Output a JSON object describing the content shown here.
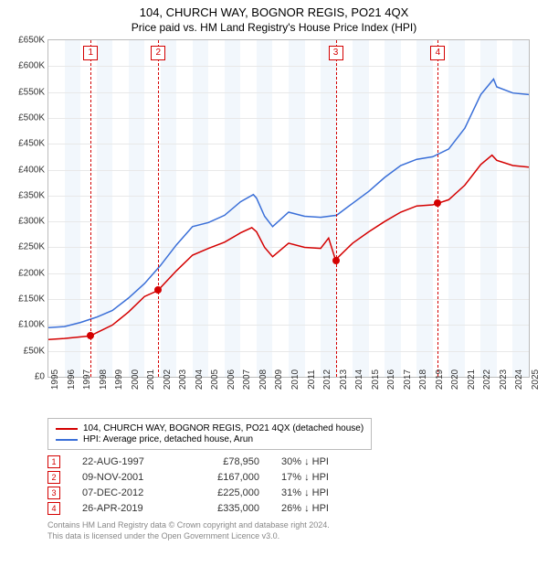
{
  "title_line1": "104, CHURCH WAY, BOGNOR REGIS, PO21 4QX",
  "title_line2": "Price paid vs. HM Land Registry's House Price Index (HPI)",
  "chart": {
    "type": "line",
    "background_color": "#ffffff",
    "band_color": "#f2f7fc",
    "grid_color": "#e8e8e8",
    "border_color": "#bbbbbb",
    "ylim": [
      0,
      650000
    ],
    "ytick_step": 50000,
    "yticks": [
      "£0",
      "£50K",
      "£100K",
      "£150K",
      "£200K",
      "£250K",
      "£300K",
      "£350K",
      "£400K",
      "£450K",
      "£500K",
      "£550K",
      "£600K",
      "£650K"
    ],
    "xlim": [
      1995,
      2025
    ],
    "xticks": [
      1995,
      1996,
      1997,
      1998,
      1999,
      2000,
      2001,
      2002,
      2003,
      2004,
      2005,
      2006,
      2007,
      2008,
      2009,
      2010,
      2011,
      2012,
      2013,
      2014,
      2015,
      2016,
      2017,
      2018,
      2019,
      2020,
      2021,
      2022,
      2023,
      2024,
      2025
    ],
    "label_fontsize": 10,
    "title_fontsize": 13,
    "line_width": 1.5,
    "series": {
      "property": {
        "label": "104, CHURCH WAY, BOGNOR REGIS, PO21 4QX (detached house)",
        "color": "#d40000",
        "points": [
          [
            1995.0,
            72000
          ],
          [
            1996.0,
            74000
          ],
          [
            1997.0,
            77000
          ],
          [
            1997.64,
            78950
          ],
          [
            1998.0,
            85000
          ],
          [
            1999.0,
            100000
          ],
          [
            2000.0,
            125000
          ],
          [
            2001.0,
            155000
          ],
          [
            2001.86,
            167000
          ],
          [
            2002.0,
            172000
          ],
          [
            2003.0,
            205000
          ],
          [
            2004.0,
            235000
          ],
          [
            2005.0,
            248000
          ],
          [
            2006.0,
            260000
          ],
          [
            2007.0,
            278000
          ],
          [
            2007.7,
            288000
          ],
          [
            2008.0,
            280000
          ],
          [
            2008.5,
            250000
          ],
          [
            2009.0,
            232000
          ],
          [
            2010.0,
            258000
          ],
          [
            2011.0,
            250000
          ],
          [
            2012.0,
            248000
          ],
          [
            2012.5,
            268000
          ],
          [
            2012.94,
            225000
          ],
          [
            2013.0,
            228000
          ],
          [
            2014.0,
            258000
          ],
          [
            2015.0,
            280000
          ],
          [
            2016.0,
            300000
          ],
          [
            2017.0,
            318000
          ],
          [
            2018.0,
            330000
          ],
          [
            2019.0,
            332000
          ],
          [
            2019.32,
            335000
          ],
          [
            2020.0,
            342000
          ],
          [
            2021.0,
            370000
          ],
          [
            2022.0,
            410000
          ],
          [
            2022.7,
            428000
          ],
          [
            2023.0,
            418000
          ],
          [
            2024.0,
            408000
          ],
          [
            2025.0,
            405000
          ]
        ]
      },
      "hpi": {
        "label": "HPI: Average price, detached house, Arun",
        "color": "#3a6fd8",
        "points": [
          [
            1995.0,
            95000
          ],
          [
            1996.0,
            97000
          ],
          [
            1997.0,
            105000
          ],
          [
            1998.0,
            115000
          ],
          [
            1999.0,
            128000
          ],
          [
            2000.0,
            152000
          ],
          [
            2001.0,
            180000
          ],
          [
            2002.0,
            215000
          ],
          [
            2003.0,
            255000
          ],
          [
            2004.0,
            290000
          ],
          [
            2005.0,
            298000
          ],
          [
            2006.0,
            312000
          ],
          [
            2007.0,
            338000
          ],
          [
            2007.8,
            352000
          ],
          [
            2008.0,
            345000
          ],
          [
            2008.5,
            310000
          ],
          [
            2009.0,
            290000
          ],
          [
            2010.0,
            318000
          ],
          [
            2011.0,
            310000
          ],
          [
            2012.0,
            308000
          ],
          [
            2013.0,
            312000
          ],
          [
            2014.0,
            335000
          ],
          [
            2015.0,
            358000
          ],
          [
            2016.0,
            385000
          ],
          [
            2017.0,
            408000
          ],
          [
            2018.0,
            420000
          ],
          [
            2019.0,
            425000
          ],
          [
            2020.0,
            440000
          ],
          [
            2021.0,
            480000
          ],
          [
            2022.0,
            545000
          ],
          [
            2022.8,
            575000
          ],
          [
            2023.0,
            560000
          ],
          [
            2024.0,
            548000
          ],
          [
            2025.0,
            545000
          ]
        ]
      }
    },
    "sale_markers": [
      {
        "idx": "1",
        "year": 1997.64,
        "price": 78950,
        "color": "#d40000"
      },
      {
        "idx": "2",
        "year": 2001.86,
        "price": 167000,
        "color": "#d40000"
      },
      {
        "idx": "3",
        "year": 2012.94,
        "price": 225000,
        "color": "#d40000"
      },
      {
        "idx": "4",
        "year": 2019.32,
        "price": 335000,
        "color": "#d40000"
      }
    ]
  },
  "legend": {
    "border_color": "#bbbbbb"
  },
  "sales_table": [
    {
      "idx": "1",
      "date": "22-AUG-1997",
      "price": "£78,950",
      "diff": "30% ↓ HPI",
      "color": "#d40000"
    },
    {
      "idx": "2",
      "date": "09-NOV-2001",
      "price": "£167,000",
      "diff": "17% ↓ HPI",
      "color": "#d40000"
    },
    {
      "idx": "3",
      "date": "07-DEC-2012",
      "price": "£225,000",
      "diff": "31% ↓ HPI",
      "color": "#d40000"
    },
    {
      "idx": "4",
      "date": "26-APR-2019",
      "price": "£335,000",
      "diff": "26% ↓ HPI",
      "color": "#d40000"
    }
  ],
  "footnote_line1": "Contains HM Land Registry data © Crown copyright and database right 2024.",
  "footnote_line2": "This data is licensed under the Open Government Licence v3.0."
}
